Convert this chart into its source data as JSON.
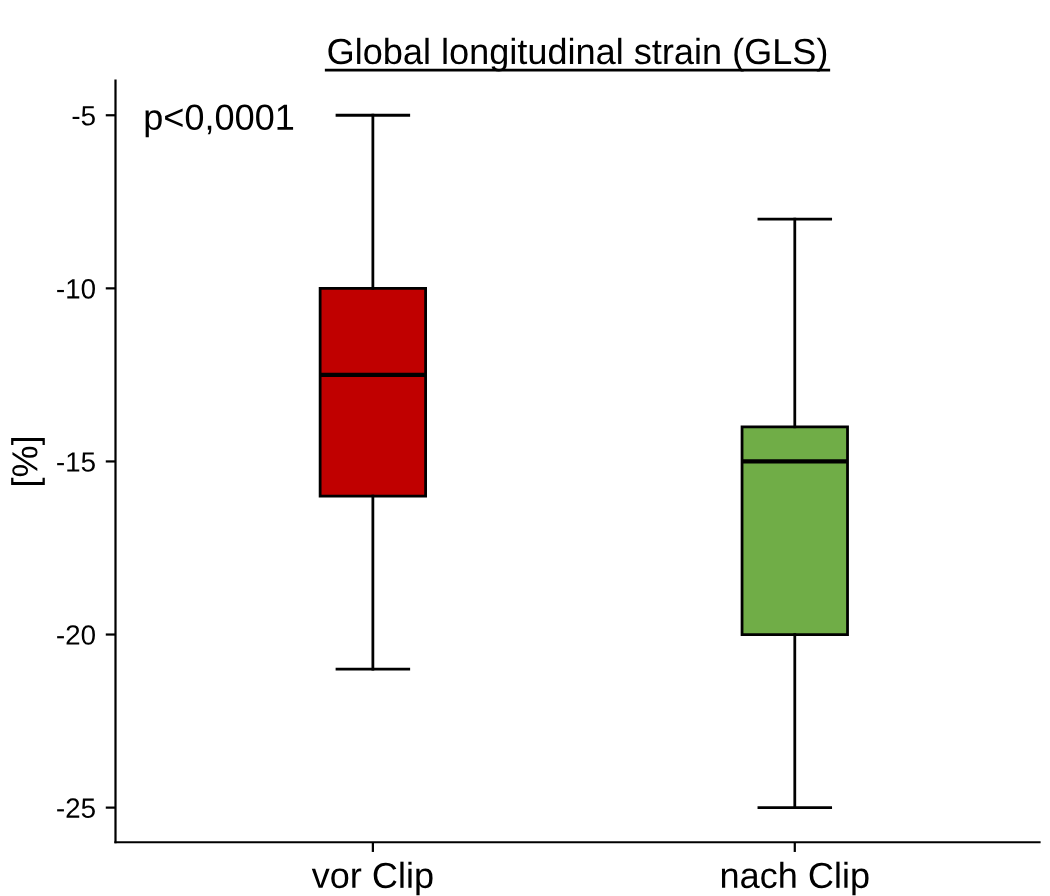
{
  "chart_data": {
    "type": "box",
    "title": "Global longitudinal strain (GLS)",
    "ylabel": "[%]",
    "categories": [
      "vor Clip",
      "nach Clip"
    ],
    "boxes": [
      {
        "low": -21,
        "q1": -16,
        "median": -12.5,
        "q3": -10,
        "high": -5
      },
      {
        "low": -25,
        "q1": -20,
        "median": -15,
        "q3": -14,
        "high": -8
      }
    ],
    "colors": [
      "#c00000",
      "#70ad47"
    ],
    "ylim": [
      -26,
      -4
    ],
    "yticks": [
      {
        "value": -5,
        "label": "-5"
      },
      {
        "value": -10,
        "label": "-10"
      },
      {
        "value": -15,
        "label": "-15"
      },
      {
        "value": -20,
        "label": "-20"
      },
      {
        "value": -25,
        "label": "-25"
      }
    ],
    "grid": false,
    "annotations": [
      "p<0,0001"
    ]
  }
}
